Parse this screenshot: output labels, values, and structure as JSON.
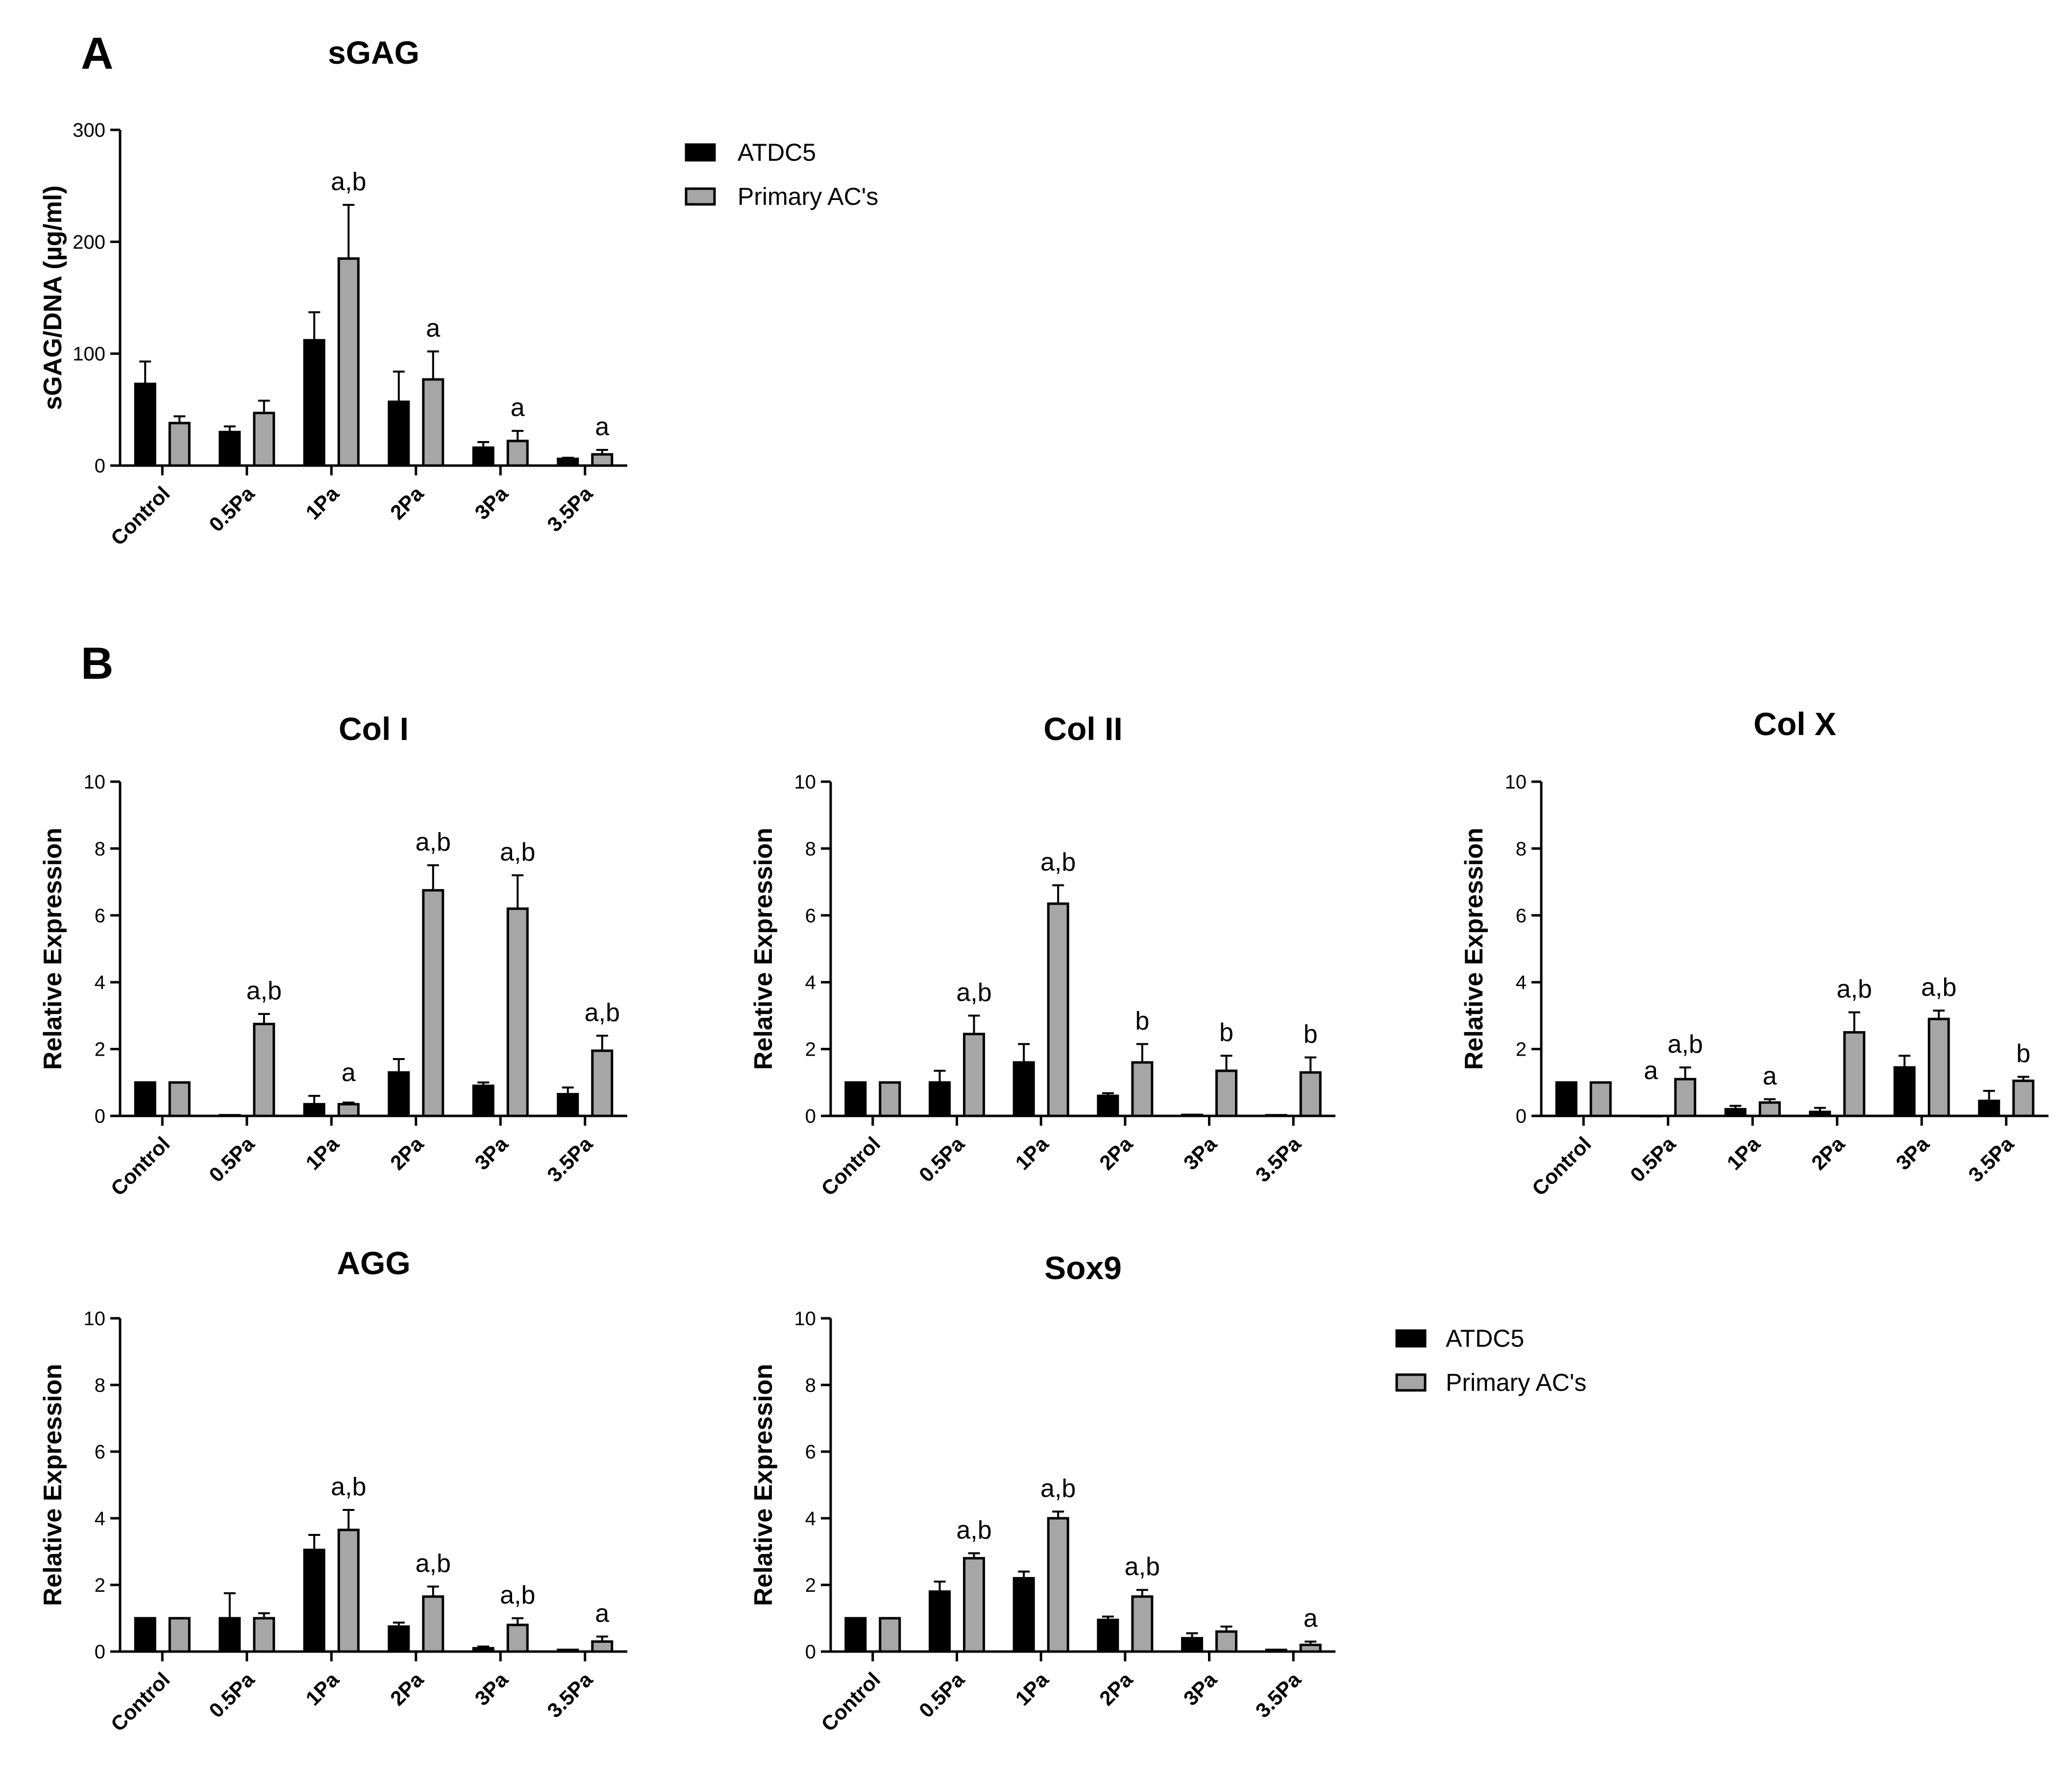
{
  "panels": {
    "A": "A",
    "B": "B"
  },
  "legend_items": [
    {
      "name": "ATDC5",
      "color": "#000000"
    },
    {
      "name": "Primary AC's",
      "color": "#a6a6a6"
    }
  ],
  "chart_data": [
    {
      "id": "sgag",
      "type": "bar",
      "title": "sGAG",
      "ylabel": "sGAG/DNA (µg/ml)",
      "xlabel": "",
      "categories": [
        "Control",
        "0.5Pa",
        "1Pa",
        "2Pa",
        "3Pa",
        "3.5Pa"
      ],
      "ylim": [
        0,
        300
      ],
      "yticks": [
        0,
        100,
        200,
        300
      ],
      "series": [
        {
          "name": "ATDC5",
          "color": "#000000",
          "values": [
            73,
            30,
            112,
            57,
            16,
            6
          ],
          "errors": [
            20,
            5,
            25,
            27,
            5,
            1
          ]
        },
        {
          "name": "Primary AC's",
          "color": "#a6a6a6",
          "values": [
            38,
            47,
            185,
            77,
            22,
            10
          ],
          "errors": [
            6,
            11,
            48,
            25,
            9,
            4
          ]
        }
      ],
      "annotations": [
        {
          "category": "1Pa",
          "text": "a,b"
        },
        {
          "category": "2Pa",
          "text": "a"
        },
        {
          "category": "3Pa",
          "text": "a"
        },
        {
          "category": "3.5Pa",
          "text": "a"
        }
      ],
      "grid": false
    },
    {
      "id": "col1",
      "type": "bar",
      "title": "Col I",
      "ylabel": "Relative Expression",
      "xlabel": "",
      "categories": [
        "Control",
        "0.5Pa",
        "1Pa",
        "2Pa",
        "3Pa",
        "3.5Pa"
      ],
      "ylim": [
        0,
        10
      ],
      "yticks": [
        0,
        2,
        4,
        6,
        8,
        10
      ],
      "series": [
        {
          "name": "ATDC5",
          "color": "#000000",
          "values": [
            1.0,
            0.02,
            0.35,
            1.3,
            0.9,
            0.65
          ],
          "errors": [
            0,
            0,
            0.25,
            0.4,
            0.1,
            0.2
          ]
        },
        {
          "name": "Primary AC's",
          "color": "#a6a6a6",
          "values": [
            1.0,
            2.75,
            0.35,
            6.75,
            6.2,
            1.95
          ],
          "errors": [
            0,
            0.3,
            0.05,
            0.75,
            1.0,
            0.45
          ]
        }
      ],
      "annotations": [
        {
          "category": "0.5Pa",
          "text": "a,b"
        },
        {
          "category": "1Pa",
          "text": "a"
        },
        {
          "category": "2Pa",
          "text": "a,b"
        },
        {
          "category": "3Pa",
          "text": "a,b"
        },
        {
          "category": "3.5Pa",
          "text": "a,b"
        }
      ],
      "grid": false
    },
    {
      "id": "col2",
      "type": "bar",
      "title": "Col II",
      "ylabel": "Relative Expression",
      "xlabel": "",
      "categories": [
        "Control",
        "0.5Pa",
        "1Pa",
        "2Pa",
        "3Pa",
        "3.5Pa"
      ],
      "ylim": [
        0,
        10
      ],
      "yticks": [
        0,
        2,
        4,
        6,
        8,
        10
      ],
      "series": [
        {
          "name": "ATDC5",
          "color": "#000000",
          "values": [
            1.0,
            1.0,
            1.6,
            0.6,
            0.03,
            0.02
          ],
          "errors": [
            0,
            0.35,
            0.55,
            0.08,
            0,
            0
          ]
        },
        {
          "name": "Primary AC's",
          "color": "#a6a6a6",
          "values": [
            1.0,
            2.45,
            6.35,
            1.6,
            1.35,
            1.3
          ],
          "errors": [
            0,
            0.55,
            0.55,
            0.55,
            0.45,
            0.45
          ]
        }
      ],
      "annotations": [
        {
          "category": "0.5Pa",
          "text": "a,b"
        },
        {
          "category": "1Pa",
          "text": "a,b"
        },
        {
          "category": "2Pa",
          "text": "b"
        },
        {
          "category": "3Pa",
          "text": "b"
        },
        {
          "category": "3.5Pa",
          "text": "b"
        }
      ],
      "grid": false
    },
    {
      "id": "colx",
      "type": "bar",
      "title": "Col X",
      "ylabel": "Relative Expression",
      "xlabel": "",
      "categories": [
        "Control",
        "0.5Pa",
        "1Pa",
        "2Pa",
        "3Pa",
        "3.5Pa"
      ],
      "ylim": [
        0,
        10
      ],
      "yticks": [
        0,
        2,
        4,
        6,
        8,
        10
      ],
      "series": [
        {
          "name": "ATDC5",
          "color": "#000000",
          "values": [
            1.0,
            0.0,
            0.2,
            0.12,
            1.45,
            0.45
          ],
          "errors": [
            0,
            0,
            0.1,
            0.12,
            0.35,
            0.3
          ]
        },
        {
          "name": "Primary AC's",
          "color": "#a6a6a6",
          "values": [
            1.0,
            1.1,
            0.4,
            2.5,
            2.9,
            1.05
          ],
          "errors": [
            0,
            0.35,
            0.1,
            0.6,
            0.25,
            0.12
          ]
        }
      ],
      "annotations": [
        {
          "category": "0.5Pa",
          "text": "a",
          "series": "ATDC5"
        },
        {
          "category": "0.5Pa",
          "text": "a,b"
        },
        {
          "category": "1Pa",
          "text": "a"
        },
        {
          "category": "2Pa",
          "text": "a,b"
        },
        {
          "category": "3Pa",
          "text": "a,b"
        },
        {
          "category": "3.5Pa",
          "text": "b"
        }
      ],
      "grid": false
    },
    {
      "id": "agg",
      "type": "bar",
      "title": "AGG",
      "ylabel": "Relative Expression",
      "xlabel": "",
      "categories": [
        "Control",
        "0.5Pa",
        "1Pa",
        "2Pa",
        "3Pa",
        "3.5Pa"
      ],
      "ylim": [
        0,
        10
      ],
      "yticks": [
        0,
        2,
        4,
        6,
        8,
        10
      ],
      "series": [
        {
          "name": "ATDC5",
          "color": "#000000",
          "values": [
            1.0,
            1.0,
            3.05,
            0.75,
            0.1,
            0.05
          ],
          "errors": [
            0,
            0.75,
            0.45,
            0.12,
            0.05,
            0
          ]
        },
        {
          "name": "Primary AC's",
          "color": "#a6a6a6",
          "values": [
            1.0,
            1.0,
            3.65,
            1.65,
            0.8,
            0.3
          ],
          "errors": [
            0,
            0.15,
            0.6,
            0.3,
            0.2,
            0.15
          ]
        }
      ],
      "annotations": [
        {
          "category": "1Pa",
          "text": "a,b"
        },
        {
          "category": "2Pa",
          "text": "a,b"
        },
        {
          "category": "3Pa",
          "text": "a,b"
        },
        {
          "category": "3.5Pa",
          "text": "a"
        }
      ],
      "grid": false
    },
    {
      "id": "sox9",
      "type": "bar",
      "title": "Sox9",
      "ylabel": "Relative Expression",
      "xlabel": "",
      "categories": [
        "Control",
        "0.5Pa",
        "1Pa",
        "2Pa",
        "3Pa",
        "3.5Pa"
      ],
      "ylim": [
        0,
        10
      ],
      "yticks": [
        0,
        2,
        4,
        6,
        8,
        10
      ],
      "series": [
        {
          "name": "ATDC5",
          "color": "#000000",
          "values": [
            1.0,
            1.8,
            2.2,
            0.95,
            0.4,
            0.05
          ],
          "errors": [
            0,
            0.3,
            0.2,
            0.1,
            0.15,
            0
          ]
        },
        {
          "name": "Primary AC's",
          "color": "#a6a6a6",
          "values": [
            1.0,
            2.8,
            4.0,
            1.65,
            0.6,
            0.2
          ],
          "errors": [
            0,
            0.15,
            0.2,
            0.2,
            0.15,
            0.1
          ]
        }
      ],
      "annotations": [
        {
          "category": "0.5Pa",
          "text": "a,b"
        },
        {
          "category": "1Pa",
          "text": "a,b"
        },
        {
          "category": "2Pa",
          "text": "a,b"
        },
        {
          "category": "3.5Pa",
          "text": "a"
        }
      ],
      "grid": false
    }
  ]
}
